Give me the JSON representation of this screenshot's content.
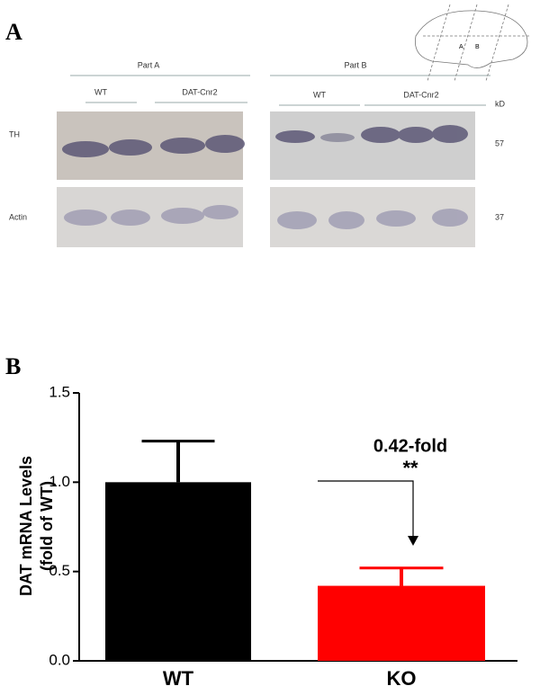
{
  "panel_a": {
    "label": "A",
    "part_a": {
      "title": "Part A",
      "groups": [
        "WT",
        "DAT-Cnr2"
      ]
    },
    "part_b": {
      "title": "Part B",
      "groups": [
        "WT",
        "DAT-Cnr2"
      ]
    },
    "unit": "kD",
    "rows": [
      {
        "name": "TH",
        "weight": "57"
      },
      {
        "name": "Actin",
        "weight": "37"
      }
    ],
    "brain_regions": [
      "A",
      "B"
    ]
  },
  "chart_data": {
    "type": "bar",
    "label": "B",
    "ylabel": [
      "DAT mRNA Levels",
      "(fold of WT)"
    ],
    "categories": [
      "WT",
      "KO"
    ],
    "values": [
      1.0,
      0.42
    ],
    "errors": [
      0.23,
      0.1
    ],
    "colors": [
      "#000000",
      "#ff0000"
    ],
    "ylim": [
      0,
      1.5
    ],
    "yticks": [
      {
        "value": 0,
        "label": "0.0"
      },
      {
        "value": 0.5,
        "label": "0.5"
      },
      {
        "value": 1,
        "label": "1.0"
      },
      {
        "value": 1.5,
        "label": "1.5"
      }
    ],
    "annotations": [
      "0.42-fold",
      "**"
    ]
  }
}
